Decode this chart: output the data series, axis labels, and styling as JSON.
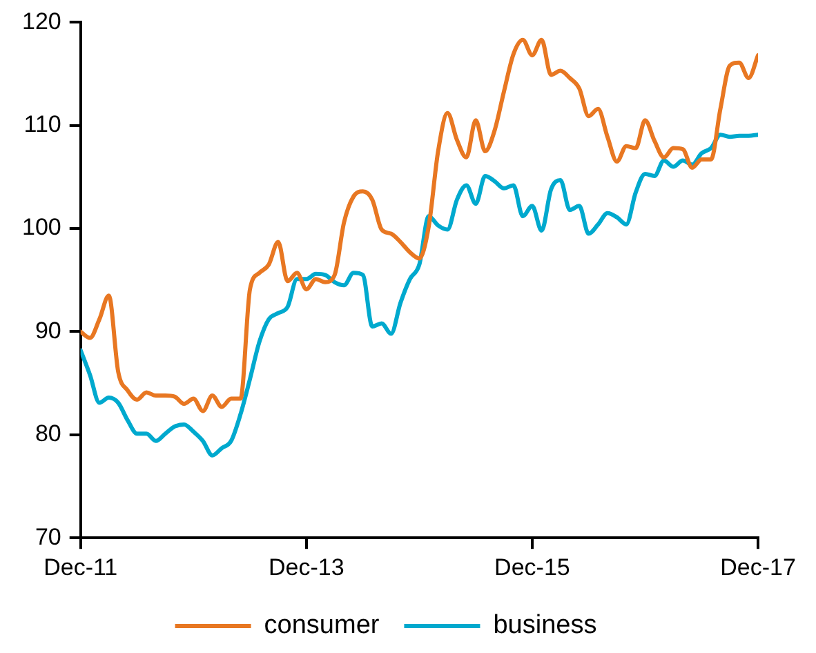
{
  "chart_data": {
    "type": "line",
    "x": [
      "2011-12",
      "2012-01",
      "2012-02",
      "2012-03",
      "2012-04",
      "2012-05",
      "2012-06",
      "2012-07",
      "2012-08",
      "2012-09",
      "2012-10",
      "2012-11",
      "2012-12",
      "2013-01",
      "2013-02",
      "2013-03",
      "2013-04",
      "2013-05",
      "2013-06",
      "2013-07",
      "2013-08",
      "2013-09",
      "2013-10",
      "2013-11",
      "2013-12",
      "2014-01",
      "2014-02",
      "2014-03",
      "2014-04",
      "2014-05",
      "2014-06",
      "2014-07",
      "2014-08",
      "2014-09",
      "2014-10",
      "2014-11",
      "2014-12",
      "2015-01",
      "2015-02",
      "2015-03",
      "2015-04",
      "2015-05",
      "2015-06",
      "2015-07",
      "2015-08",
      "2015-09",
      "2015-10",
      "2015-11",
      "2015-12",
      "2016-01",
      "2016-02",
      "2016-03",
      "2016-04",
      "2016-05",
      "2016-06",
      "2016-07",
      "2016-08",
      "2016-09",
      "2016-10",
      "2016-11",
      "2016-12",
      "2017-01",
      "2017-02",
      "2017-03",
      "2017-04",
      "2017-05",
      "2017-06",
      "2017-07",
      "2017-08",
      "2017-09",
      "2017-10",
      "2017-11",
      "2017-12"
    ],
    "series": [
      {
        "name": "consumer",
        "color": "#e87722",
        "values": [
          90.0,
          89.4,
          91.2,
          93.5,
          86.1,
          84.3,
          83.4,
          84.1,
          83.8,
          83.8,
          83.7,
          83.0,
          83.5,
          82.3,
          83.8,
          82.7,
          83.5,
          83.5,
          94.1,
          95.7,
          96.5,
          98.7,
          94.9,
          95.7,
          94.1,
          95.1,
          94.8,
          95.5,
          100.6,
          103.1,
          103.6,
          102.8,
          99.9,
          99.5,
          98.7,
          97.7,
          97.1,
          100.2,
          107.5,
          111.2,
          108.6,
          106.9,
          110.5,
          107.5,
          109.5,
          113.3,
          116.9,
          118.3,
          116.8,
          118.3,
          114.9,
          115.3,
          114.6,
          113.6,
          110.9,
          111.6,
          108.9,
          106.5,
          108.0,
          107.8,
          110.5,
          108.5,
          106.9,
          107.8,
          107.7,
          105.9,
          106.7,
          106.7,
          111.6,
          115.8,
          116.1,
          114.6,
          116.8
        ]
      },
      {
        "name": "business",
        "color": "#00a9ce",
        "values": [
          88.2,
          85.8,
          83.1,
          83.6,
          83.1,
          81.4,
          80.1,
          80.1,
          79.4,
          80.1,
          80.8,
          81.0,
          80.3,
          79.4,
          78.0,
          78.7,
          79.4,
          82.0,
          85.4,
          89.0,
          91.2,
          91.8,
          92.4,
          95.1,
          95.1,
          95.6,
          95.5,
          94.8,
          94.5,
          95.7,
          95.5,
          90.5,
          90.8,
          89.8,
          92.8,
          95.1,
          96.5,
          101.2,
          100.3,
          99.9,
          102.8,
          104.2,
          102.4,
          105.1,
          104.6,
          103.9,
          104.2,
          101.2,
          102.2,
          99.8,
          103.8,
          104.7,
          101.8,
          102.2,
          99.5,
          100.4,
          101.5,
          101.1,
          100.4,
          103.5,
          105.3,
          105.1,
          106.6,
          106.0,
          106.6,
          106.2,
          107.3,
          107.8,
          109.1,
          108.9,
          109.0,
          109.0,
          109.1
        ]
      }
    ],
    "xlim": [
      "2011-12",
      "2017-12"
    ],
    "xticks": [
      {
        "value": "2011-12",
        "label": "Dec-11"
      },
      {
        "value": "2013-12",
        "label": "Dec-13"
      },
      {
        "value": "2015-12",
        "label": "Dec-15"
      },
      {
        "value": "2017-12",
        "label": "Dec-17"
      }
    ],
    "ylim": [
      70,
      120
    ],
    "yticks": [
      70,
      80,
      90,
      100,
      110,
      120
    ],
    "grid": false,
    "legend": "bottom",
    "marker": "none",
    "line_style": "solid"
  }
}
